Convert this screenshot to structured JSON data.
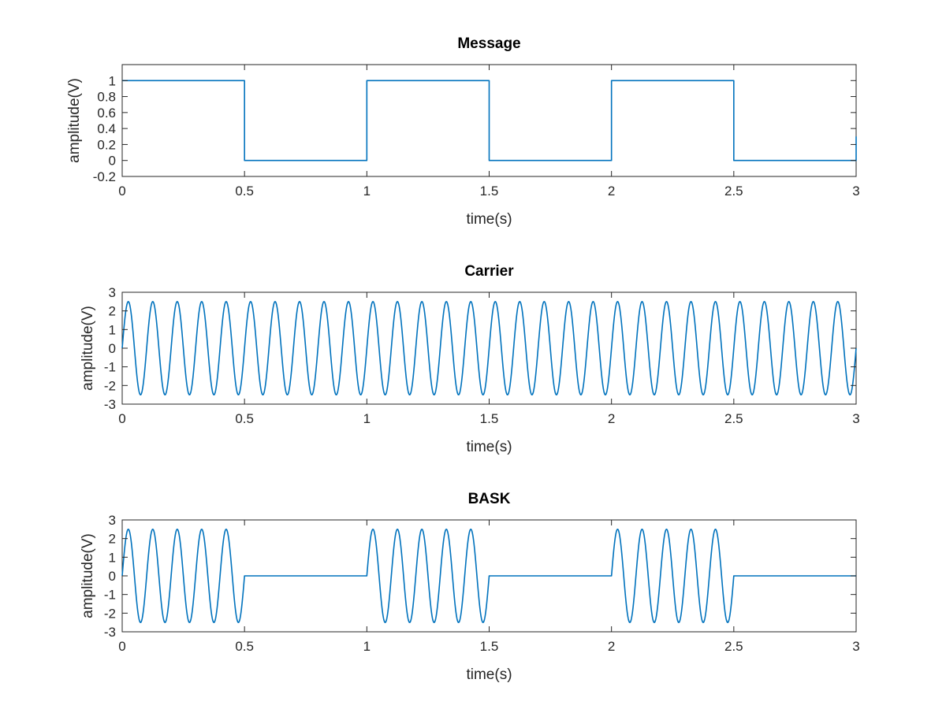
{
  "chart_data": [
    {
      "type": "line",
      "title": "Message",
      "xlabel": "time(s)",
      "ylabel": "amplitude(V)",
      "xlim": [
        0,
        3
      ],
      "ylim": [
        -0.2,
        1.2
      ],
      "xticks": [
        "0",
        "0.5",
        "1",
        "1.5",
        "2",
        "2.5",
        "3"
      ],
      "yticks": [
        "-0.2",
        "0",
        "0.2",
        "0.4",
        "0.6",
        "0.8",
        "1"
      ],
      "grid": false,
      "series": [
        {
          "color": "#0072bd",
          "waveform": "square",
          "x": [
            0,
            0.5,
            0.5,
            1,
            1,
            1.5,
            1.5,
            2,
            2,
            2.5,
            2.5,
            3,
            3
          ],
          "y": [
            1,
            1,
            0,
            0,
            1,
            1,
            0,
            0,
            1,
            1,
            0,
            0,
            0.3
          ]
        }
      ]
    },
    {
      "type": "line",
      "title": "Carrier",
      "xlabel": "time(s)",
      "ylabel": "amplitude(V)",
      "xlim": [
        0,
        3
      ],
      "ylim": [
        -3,
        3
      ],
      "xticks": [
        "0",
        "0.5",
        "1",
        "1.5",
        "2",
        "2.5",
        "3"
      ],
      "yticks": [
        "-3",
        "-2",
        "-1",
        "0",
        "1",
        "2",
        "3"
      ],
      "grid": false,
      "series": [
        {
          "color": "#0072bd",
          "waveform": "sine",
          "amplitude": 2.5,
          "frequency_hz": 10,
          "x_range": [
            0,
            3
          ]
        }
      ]
    },
    {
      "type": "line",
      "title": "BASK",
      "xlabel": "time(s)",
      "ylabel": "amplitude(V)",
      "xlim": [
        0,
        3
      ],
      "ylim": [
        -3,
        3
      ],
      "xticks": [
        "0",
        "0.5",
        "1",
        "1.5",
        "2",
        "2.5",
        "3"
      ],
      "yticks": [
        "-3",
        "-2",
        "-1",
        "0",
        "1",
        "2",
        "3"
      ],
      "grid": false,
      "series": [
        {
          "color": "#0072bd",
          "waveform": "gated-sine",
          "amplitude": 2.5,
          "frequency_hz": 10,
          "x_range": [
            0,
            3
          ],
          "on_intervals": [
            [
              0,
              0.5
            ],
            [
              1,
              1.5
            ],
            [
              2,
              2.5
            ]
          ]
        }
      ]
    }
  ]
}
